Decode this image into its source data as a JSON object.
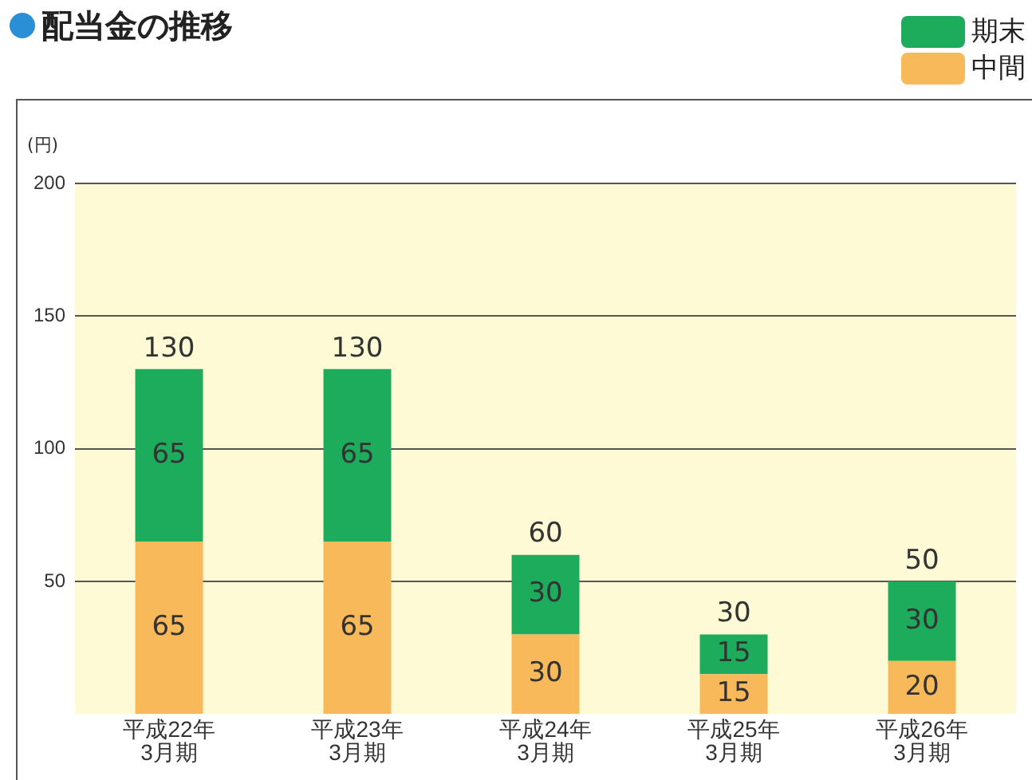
{
  "chart_data": {
    "type": "bar",
    "title": "配当金の推移",
    "ylabel": "(円)",
    "categories": [
      "平成22年\n3月期",
      "平成23年\n3月期",
      "平成24年\n3月期",
      "平成25年\n3月期",
      "平成26年\n3月期"
    ],
    "series": [
      {
        "name": "中間",
        "color": "#f8b95a",
        "values": [
          65,
          65,
          30,
          15,
          20
        ]
      },
      {
        "name": "期末",
        "color": "#1dab5c",
        "values": [
          65,
          65,
          30,
          15,
          30
        ]
      }
    ],
    "stacked": true,
    "data_labels": true,
    "totals": [
      "130",
      "130",
      "60",
      "30",
      "50"
    ],
    "ylim": [
      0,
      200
    ],
    "yticks": [
      50,
      100,
      150,
      200
    ],
    "grid": "y",
    "legend": "top right"
  }
}
